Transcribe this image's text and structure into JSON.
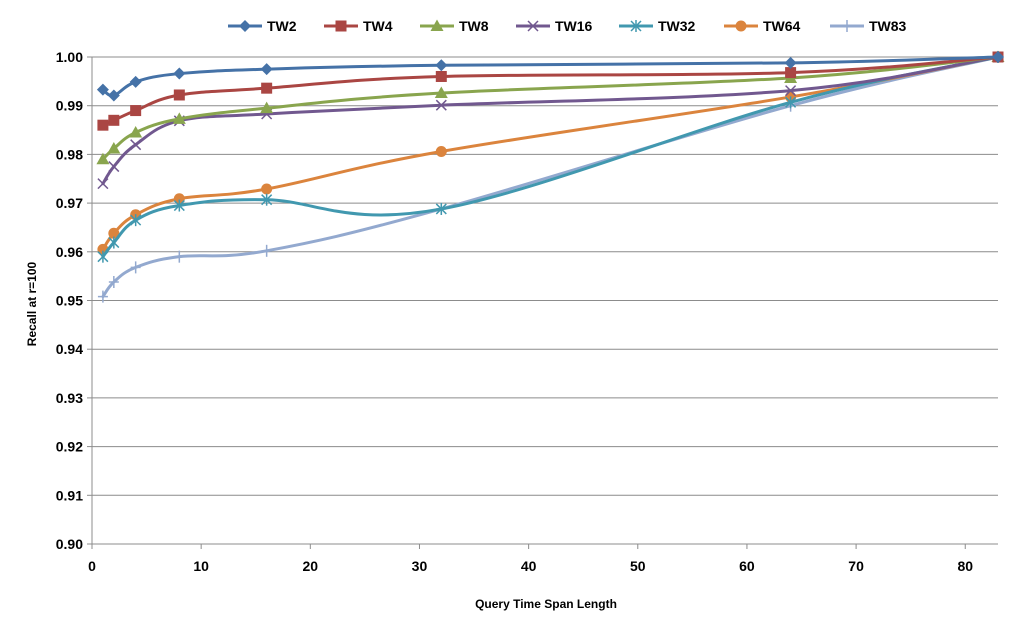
{
  "chart_data": {
    "type": "line",
    "title": "",
    "xlabel": "Query Time Span Length",
    "ylabel": "Recall at r=100",
    "xlim": [
      0,
      83
    ],
    "ylim": [
      0.9,
      1.0
    ],
    "xticks": [
      0,
      10,
      20,
      30,
      40,
      50,
      60,
      70,
      80
    ],
    "xtick_labels": [
      "0",
      "10",
      "20",
      "30",
      "40",
      "50",
      "60",
      "70",
      "80"
    ],
    "yticks": [
      0.9,
      0.91,
      0.92,
      0.93,
      0.94,
      0.95,
      0.96,
      0.97,
      0.98,
      0.99,
      1.0
    ],
    "ytick_labels": [
      "0.90",
      "0.91",
      "0.92",
      "0.93",
      "0.94",
      "0.95",
      "0.96",
      "0.97",
      "0.98",
      "0.99",
      "1.00"
    ],
    "grid": "horizontal",
    "legend_position": "top",
    "series": [
      {
        "name": "TW2",
        "color": "#4572A7",
        "marker": "diamond",
        "x": [
          1,
          2,
          4,
          8,
          16,
          32,
          64,
          83
        ],
        "y": [
          0.9933,
          0.9921,
          0.9949,
          0.9966,
          0.9975,
          0.9983,
          0.9988,
          1.0
        ]
      },
      {
        "name": "TW4",
        "color": "#AA4643",
        "marker": "square",
        "x": [
          1,
          2,
          4,
          8,
          16,
          32,
          64,
          83
        ],
        "y": [
          0.986,
          0.987,
          0.989,
          0.9922,
          0.9936,
          0.996,
          0.9968,
          1.0
        ]
      },
      {
        "name": "TW8",
        "color": "#89A54E",
        "marker": "triangle",
        "x": [
          1,
          2,
          4,
          8,
          16,
          32,
          64,
          83
        ],
        "y": [
          0.979,
          0.9812,
          0.9845,
          0.9873,
          0.9895,
          0.9926,
          0.9957,
          1.0
        ]
      },
      {
        "name": "TW16",
        "color": "#71588F",
        "marker": "x",
        "x": [
          1,
          2,
          4,
          8,
          16,
          32,
          64,
          83
        ],
        "y": [
          0.974,
          0.9775,
          0.982,
          0.9869,
          0.9883,
          0.9901,
          0.9931,
          1.0
        ]
      },
      {
        "name": "TW32",
        "color": "#4198AF",
        "marker": "star",
        "x": [
          1,
          2,
          4,
          8,
          16,
          32,
          64,
          83
        ],
        "y": [
          0.959,
          0.9619,
          0.9665,
          0.9695,
          0.9707,
          0.9688,
          0.9907,
          1.0
        ]
      },
      {
        "name": "TW64",
        "color": "#DB843D",
        "marker": "circle",
        "x": [
          1,
          2,
          4,
          8,
          16,
          32,
          64,
          83
        ],
        "y": [
          0.9605,
          0.9638,
          0.9676,
          0.9709,
          0.9729,
          0.9806,
          0.9918,
          1.0
        ]
      },
      {
        "name": "TW83",
        "color": "#93A9CF",
        "marker": "plus",
        "x": [
          1,
          2,
          4,
          8,
          16,
          32,
          64,
          83
        ],
        "y": [
          0.9508,
          0.9538,
          0.9568,
          0.959,
          0.9602,
          0.9688,
          0.99,
          1.0
        ]
      }
    ]
  }
}
